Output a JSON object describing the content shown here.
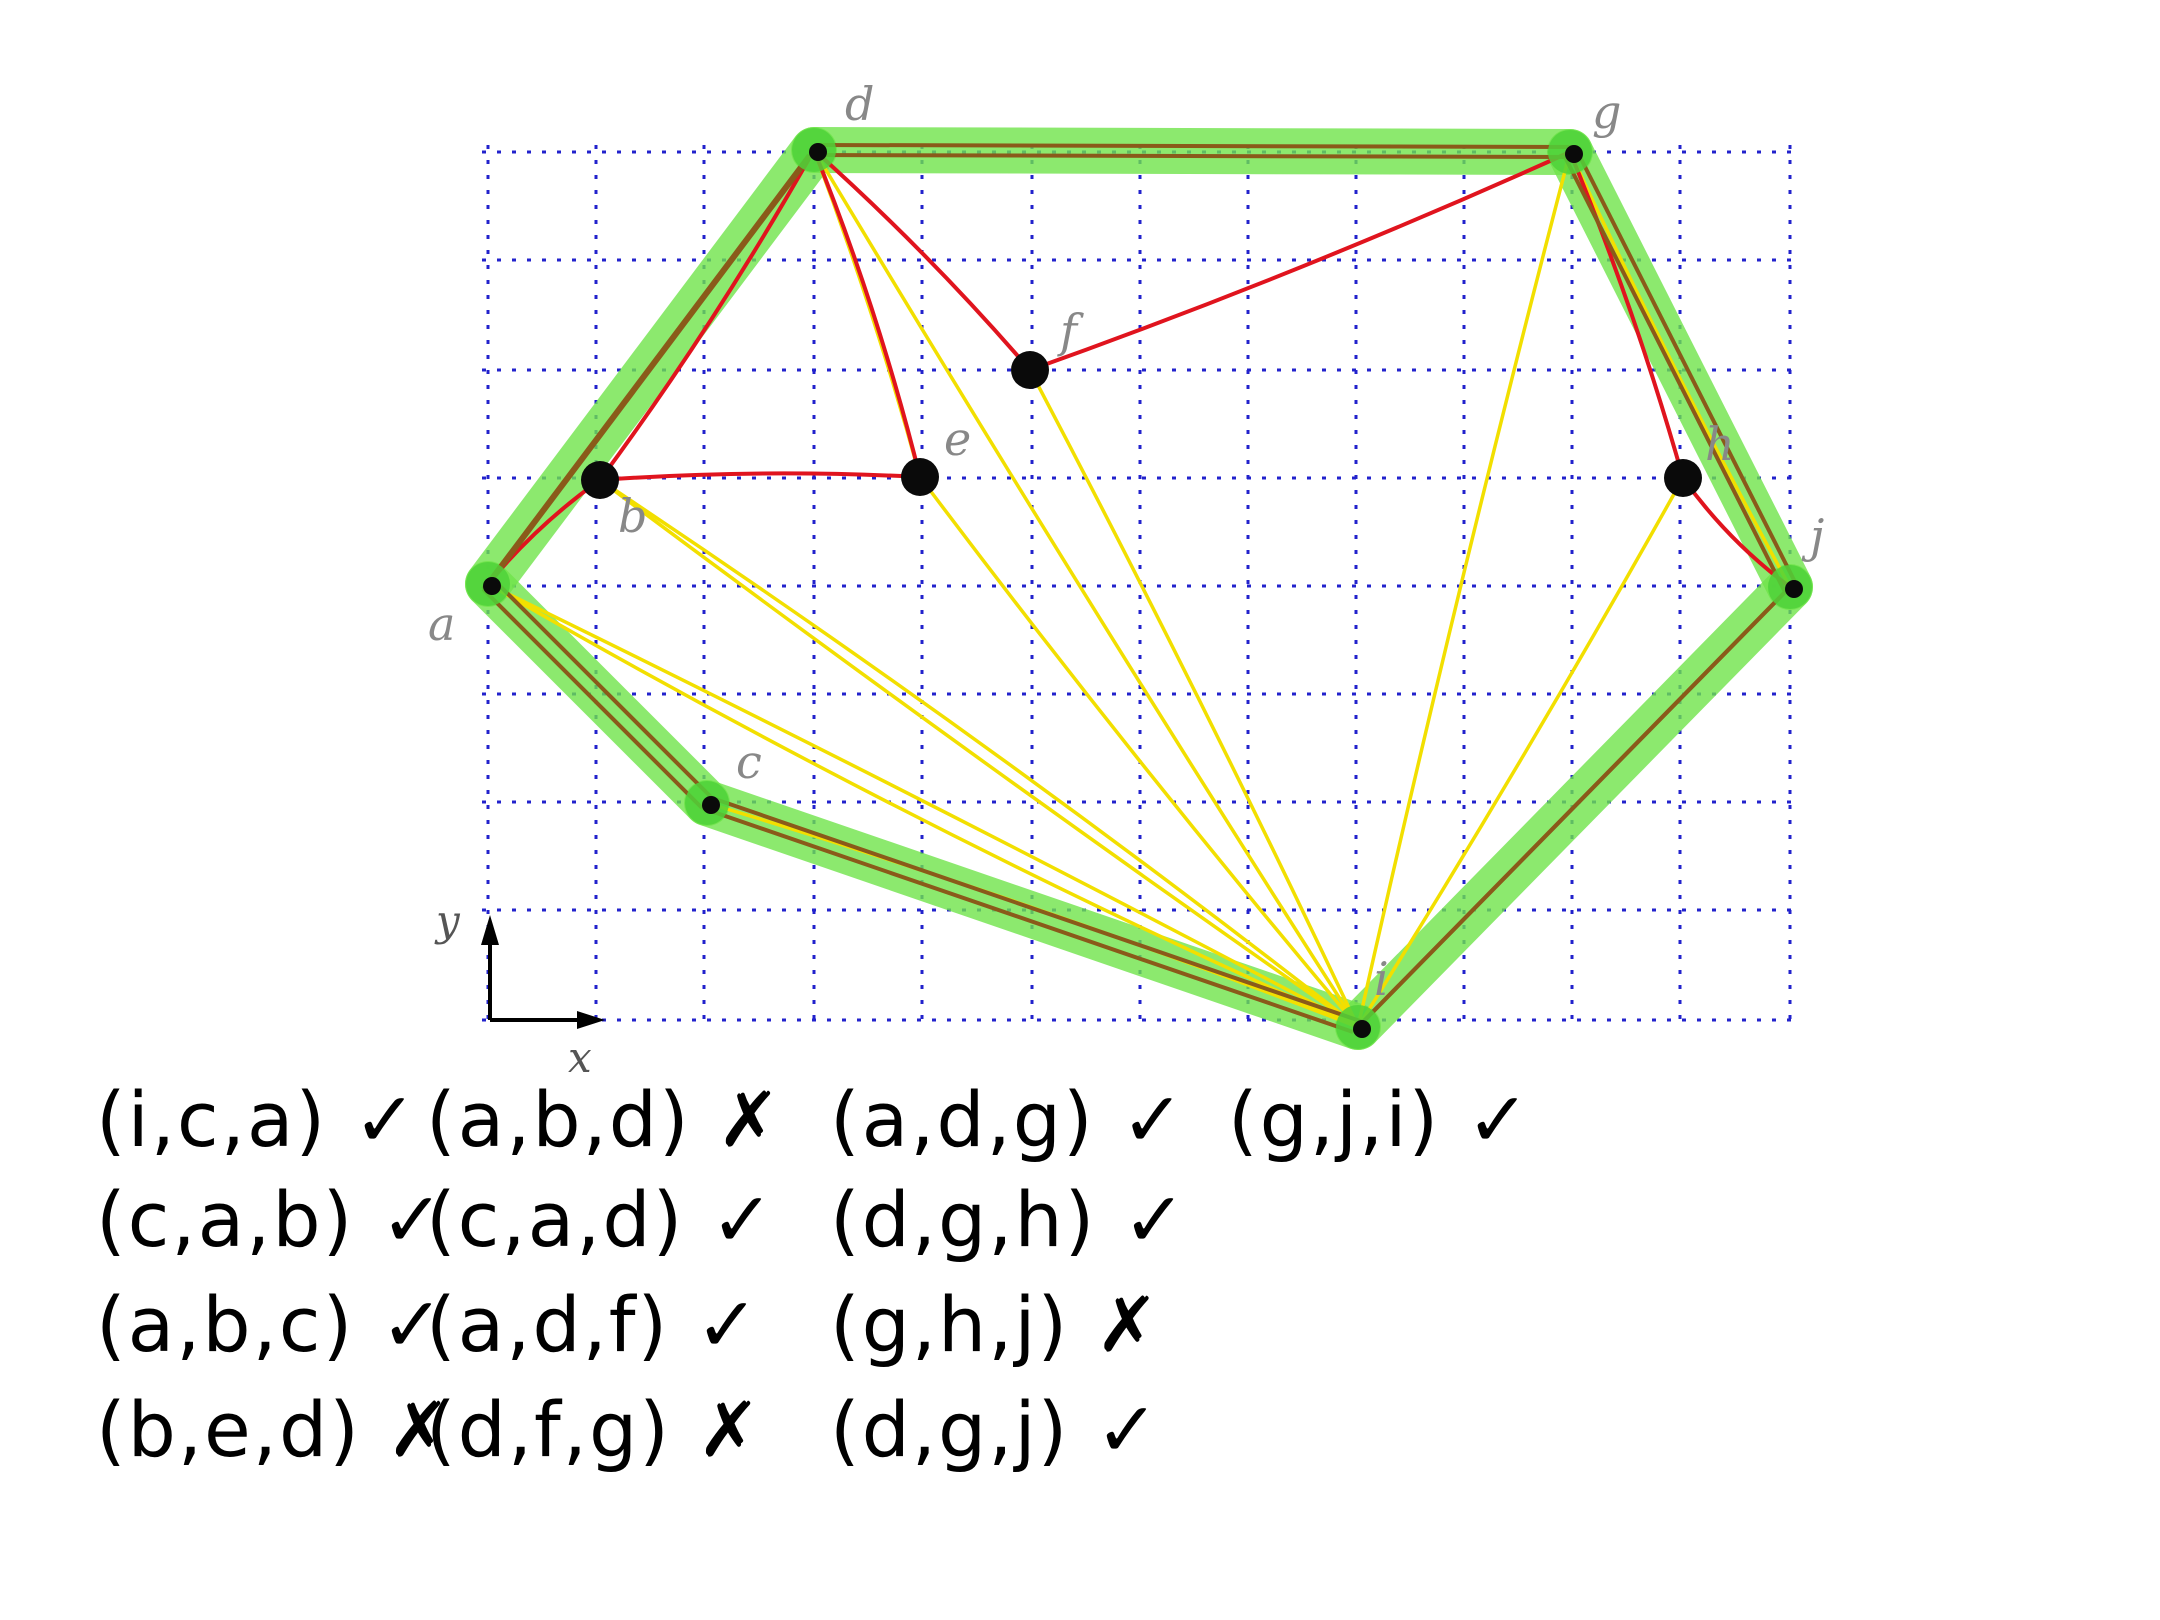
{
  "vertices": [
    {
      "id": "a",
      "label": "a"
    },
    {
      "id": "b",
      "label": "b"
    },
    {
      "id": "c",
      "label": "c"
    },
    {
      "id": "d",
      "label": "d"
    },
    {
      "id": "e",
      "label": "e"
    },
    {
      "id": "f",
      "label": "f"
    },
    {
      "id": "g",
      "label": "g"
    },
    {
      "id": "h",
      "label": "h"
    },
    {
      "id": "i",
      "label": "i"
    },
    {
      "id": "j",
      "label": "j"
    }
  ],
  "axes": {
    "x_label": "x",
    "y_label": "y"
  },
  "hull_edges": [
    [
      "d",
      "g"
    ],
    [
      "g",
      "j"
    ],
    [
      "j",
      "i"
    ],
    [
      "i",
      "c"
    ],
    [
      "c",
      "a"
    ],
    [
      "a",
      "d"
    ]
  ],
  "red_edges": [
    [
      "a",
      "b"
    ],
    [
      "b",
      "d"
    ],
    [
      "b",
      "e"
    ],
    [
      "e",
      "d"
    ],
    [
      "d",
      "f"
    ],
    [
      "f",
      "g"
    ],
    [
      "g",
      "h"
    ],
    [
      "h",
      "j"
    ]
  ],
  "yellow_edges": [
    [
      "a",
      "i"
    ],
    [
      "b",
      "i"
    ],
    [
      "d",
      "e"
    ],
    [
      "d",
      "i"
    ],
    [
      "f",
      "i"
    ],
    [
      "g",
      "i"
    ],
    [
      "h",
      "i"
    ],
    [
      "g",
      "j"
    ]
  ],
  "triangle_checks": [
    [
      {
        "text": "(i,c,a)",
        "mark": "✓"
      },
      {
        "text": "(c,a,b)",
        "mark": "✓"
      },
      {
        "text": "(a,b,c)",
        "mark": "✓"
      },
      {
        "text": "(b,e,d)",
        "mark": "✗"
      }
    ],
    [
      {
        "text": "(a,b,d)",
        "mark": "✗"
      },
      {
        "text": "(c,a,d)",
        "mark": "✓"
      },
      {
        "text": "(a,d,f)",
        "mark": "✓"
      },
      {
        "text": "(d,f,g)",
        "mark": "✗"
      }
    ],
    [
      {
        "text": "(a,d,g)",
        "mark": "✓"
      },
      {
        "text": "(d,g,h)",
        "mark": "✓"
      },
      {
        "text": "(g,h,j)",
        "mark": "✗"
      },
      {
        "text": "(d,g,j)",
        "mark": "✓"
      }
    ],
    [
      {
        "text": "(g,j,i)",
        "mark": "✓"
      }
    ]
  ],
  "colors": {
    "grid": "#2222cc",
    "hull_highlight": "#6fe34a",
    "red_edge": "#e0141e",
    "yellow_edge": "#f2df00",
    "vertex": "#0a0a0a"
  }
}
